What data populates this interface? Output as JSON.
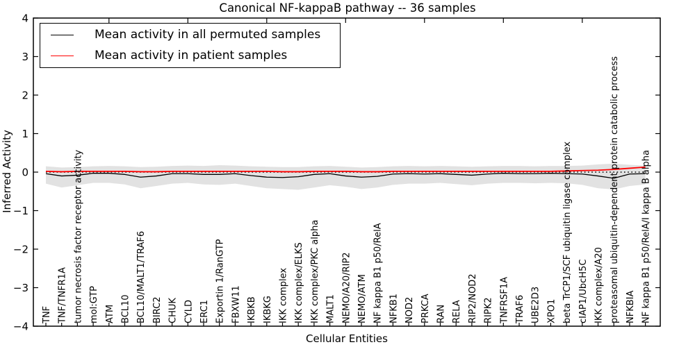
{
  "title": "Canonical NF-kappaB pathway -- 36 samples",
  "legend": {
    "items": [
      {
        "label": "Mean activity in all permuted samples",
        "color": "#000000"
      },
      {
        "label": "Mean activity in patient samples",
        "color": "#ff0000"
      }
    ]
  },
  "chart_data": {
    "type": "line",
    "title": "Canonical NF-kappaB pathway -- 36 samples",
    "xlabel": "Cellular Entities",
    "ylabel": "Inferred Activity",
    "ylim": [
      -4,
      4
    ],
    "yticks": [
      4,
      3,
      2,
      1,
      0,
      -1,
      -2,
      -3,
      -4
    ],
    "grid": false,
    "legend_position": "upper-left",
    "categories": [
      "TNF",
      "TNF/TNFR1A",
      "tumor necrosis factor receptor activity",
      "mol:GTP",
      "ATM",
      "BCL10",
      "BCL10/MALT1/TRAF6",
      "BIRC2",
      "CHUK",
      "CYLD",
      "ERC1",
      "Exportin 1/RanGTP",
      "FBXW11",
      "IKBKB",
      "IKBKG",
      "IKK complex",
      "IKK complex/ELKS",
      "IKK complex/PKC alpha",
      "MALT1",
      "NEMO/A20/RIP2",
      "NEMO/ATM",
      "NF kappa B1 p50/RelA",
      "NFKB1",
      "NOD2",
      "PRKCA",
      "RAN",
      "RELA",
      "RIP2/NOD2",
      "RIPK2",
      "TNFRSF1A",
      "TRAF6",
      "UBE2D3",
      "XPO1",
      "beta TrCP1/SCF ubiquitin ligase complex",
      "cIAP1/UbcH5C",
      "IKK complex/A20",
      "proteasomal ubiquitin-dependent protein catabolic process",
      "NFKBIA",
      "NF kappa B1 p50/RelA/I kappa B alpha"
    ],
    "series": [
      {
        "name": "Mean activity in all permuted samples",
        "color": "#000000",
        "width": 1.3,
        "values": [
          -0.04,
          -0.1,
          -0.08,
          -0.03,
          -0.03,
          -0.06,
          -0.13,
          -0.1,
          -0.04,
          -0.04,
          -0.06,
          -0.06,
          -0.04,
          -0.09,
          -0.13,
          -0.14,
          -0.12,
          -0.06,
          -0.04,
          -0.1,
          -0.13,
          -0.11,
          -0.05,
          -0.04,
          -0.05,
          -0.04,
          -0.06,
          -0.08,
          -0.05,
          -0.03,
          -0.04,
          -0.04,
          -0.03,
          -0.04,
          -0.05,
          -0.1,
          -0.16,
          -0.05,
          -0.04
        ]
      },
      {
        "name": "Mean activity in patient samples",
        "color": "#ff0000",
        "width": 1.8,
        "values": [
          0.02,
          0.01,
          0.02,
          0.02,
          0.02,
          0.02,
          0.01,
          0.01,
          0.02,
          0.02,
          0.02,
          0.02,
          0.02,
          0.02,
          0.02,
          0.01,
          0.01,
          0.02,
          0.02,
          0.02,
          0.01,
          0.01,
          0.02,
          0.02,
          0.02,
          0.02,
          0.02,
          0.02,
          0.02,
          0.02,
          0.02,
          0.02,
          0.02,
          0.03,
          0.04,
          0.05,
          0.07,
          0.1,
          0.13
        ]
      }
    ],
    "band": {
      "name": "permuted-samples-range",
      "color": "#e2e2e2",
      "upper": [
        0.15,
        0.12,
        0.13,
        0.15,
        0.16,
        0.15,
        0.13,
        0.14,
        0.16,
        0.17,
        0.16,
        0.18,
        0.17,
        0.15,
        0.14,
        0.13,
        0.13,
        0.15,
        0.16,
        0.14,
        0.12,
        0.13,
        0.15,
        0.16,
        0.15,
        0.16,
        0.15,
        0.14,
        0.15,
        0.16,
        0.16,
        0.15,
        0.16,
        0.16,
        0.17,
        0.2,
        0.22,
        0.19,
        0.17
      ],
      "lower": [
        -0.3,
        -0.4,
        -0.34,
        -0.28,
        -0.28,
        -0.32,
        -0.42,
        -0.36,
        -0.3,
        -0.28,
        -0.32,
        -0.33,
        -0.3,
        -0.36,
        -0.42,
        -0.44,
        -0.46,
        -0.4,
        -0.34,
        -0.38,
        -0.44,
        -0.4,
        -0.33,
        -0.3,
        -0.3,
        -0.28,
        -0.31,
        -0.34,
        -0.3,
        -0.28,
        -0.28,
        -0.29,
        -0.28,
        -0.29,
        -0.33,
        -0.42,
        -0.45,
        -0.36,
        -0.32
      ]
    },
    "zero_line": {
      "value": 0,
      "style": "dotted",
      "color": "#000000"
    }
  }
}
